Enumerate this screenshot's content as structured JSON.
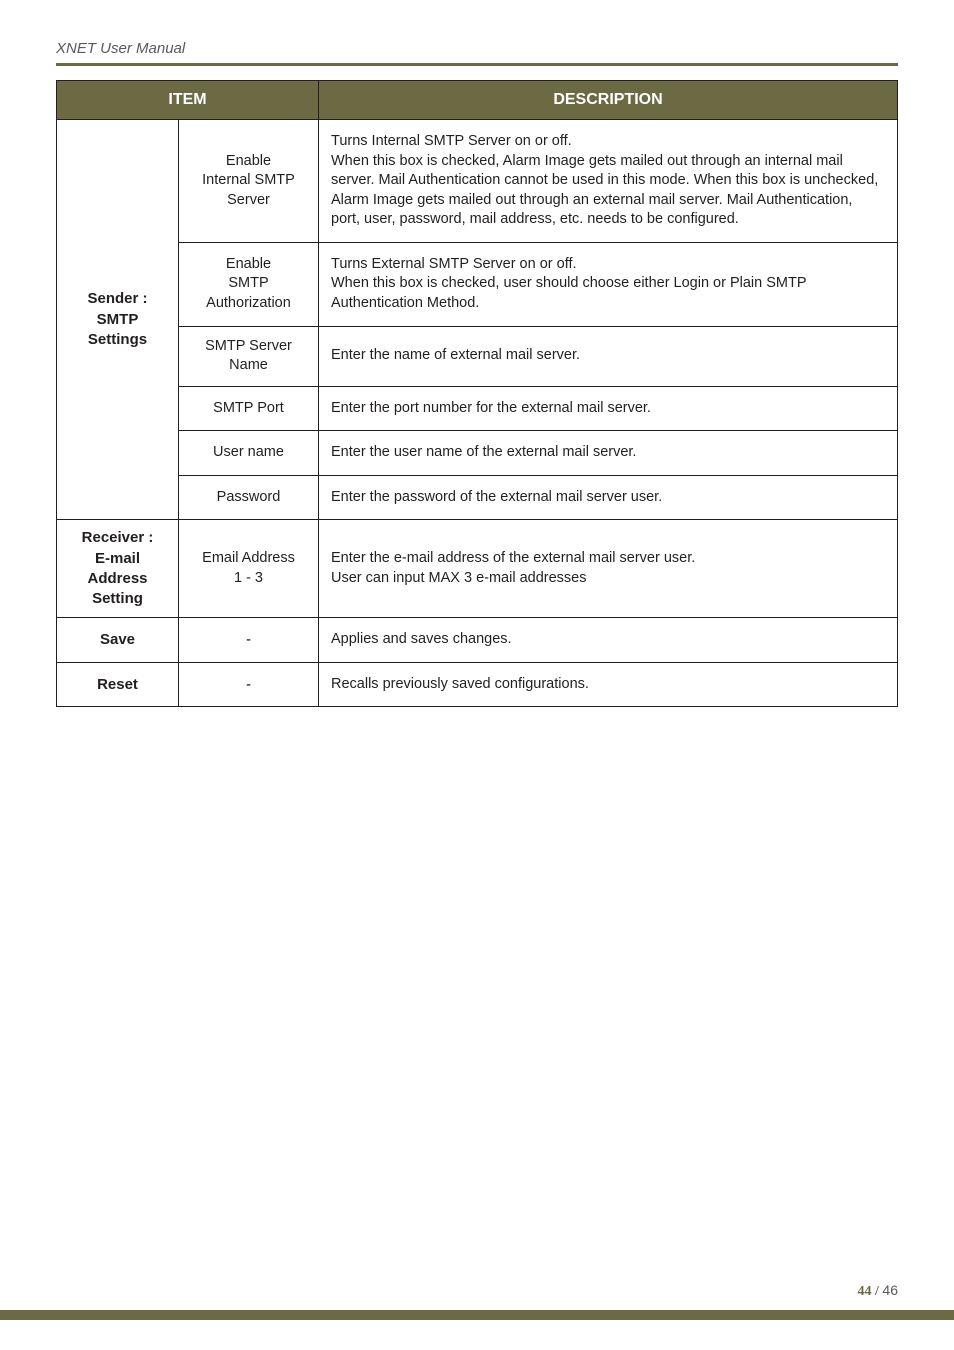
{
  "meta": {
    "doc_title": "XNET User Manual",
    "page_current": "44",
    "page_divider": " / ",
    "page_total": "46"
  },
  "colors": {
    "olive": "#6b6a42",
    "text": "#231f20",
    "muted": "#595959",
    "white": "#ffffff",
    "border": "#231f20"
  },
  "table": {
    "header": {
      "item": "ITEM",
      "description": "DESCRIPTION"
    },
    "rows": [
      {
        "rowhead": "Sender :\nSMTP\nSettings",
        "rowspan": 6,
        "items": [
          {
            "sub": "Enable\nInternal SMTP\nServer",
            "desc": "Turns Internal SMTP Server on or off.\nWhen this box is checked, Alarm Image gets mailed out through an internal mail server. Mail Authentication cannot be used in this mode. When this box is unchecked, Alarm Image gets mailed out through an external mail server. Mail Authentication, port, user, password, mail address, etc. needs to be configured."
          },
          {
            "sub": "Enable\nSMTP\nAuthorization",
            "desc": "Turns External SMTP Server on or off.\nWhen this box is checked, user should choose either Login or Plain SMTP Authentication Method."
          },
          {
            "sub": "SMTP Server\nName",
            "desc": "Enter the name of external mail server."
          },
          {
            "sub": "SMTP Port",
            "desc": "Enter the port number for the external mail server."
          },
          {
            "sub": "User name",
            "desc": "Enter the user name of the external mail server."
          },
          {
            "sub": "Password",
            "desc": "Enter the password of the external mail server user."
          }
        ]
      },
      {
        "rowhead": "Receiver :\nE-mail\nAddress\nSetting",
        "rowspan": 1,
        "items": [
          {
            "sub": "Email Address\n1 - 3",
            "desc": "Enter the e-mail address of the external mail server user.\nUser can input MAX 3 e-mail addresses"
          }
        ]
      },
      {
        "rowhead": "Save",
        "rowspan": 1,
        "items": [
          {
            "sub": "-",
            "desc": "Applies and saves changes."
          }
        ]
      },
      {
        "rowhead": "Reset",
        "rowspan": 1,
        "items": [
          {
            "sub": "-",
            "desc": "Recalls previously saved configurations."
          }
        ]
      }
    ]
  }
}
